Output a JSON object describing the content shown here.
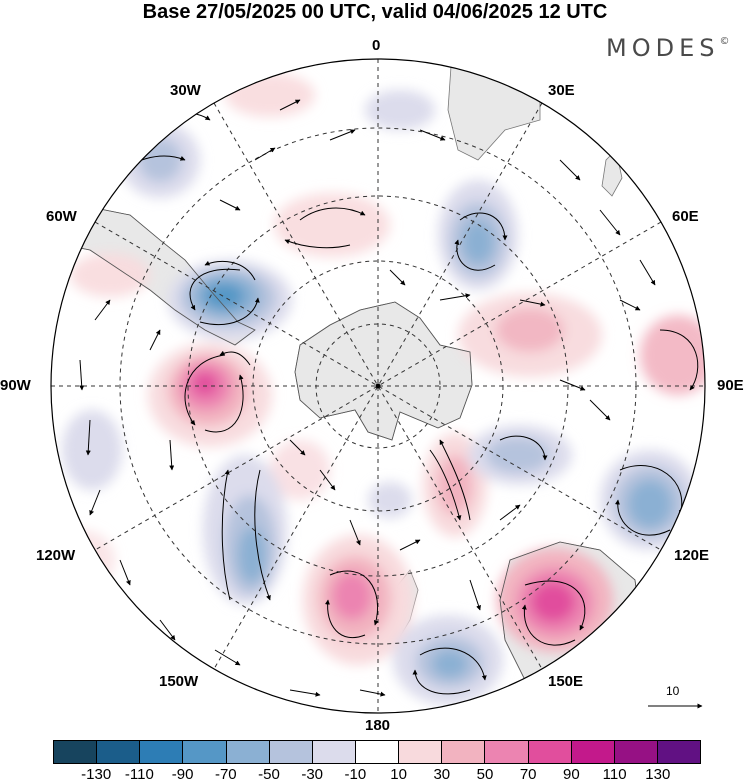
{
  "header": {
    "title": "Base 27/05/2025 00 UTC, valid 04/06/2025 12 UTC",
    "brand": "MODES",
    "brand_mark": "©"
  },
  "map": {
    "projection": "south-polar-stereographic",
    "longitude_labels": {
      "top": "0",
      "top_right": "30E",
      "top_left": "30W",
      "right_upper": "60E",
      "left_upper": "60W",
      "right": "90E",
      "left": "90W",
      "right_lower": "120E",
      "left_lower": "120W",
      "bottom_right": "150E",
      "bottom_left": "150W",
      "bottom": "180"
    },
    "reference_vector": {
      "label": "10"
    },
    "colors": {
      "land": "#e8e8e8",
      "coast": "#777777",
      "grid": "#333333"
    }
  },
  "colorbar": {
    "colors": [
      "#17445e",
      "#1b5d8a",
      "#2d7db5",
      "#5597c6",
      "#8bb0d3",
      "#b5c3dd",
      "#dcdcec",
      "#ffffff",
      "#f8dadd",
      "#f2b3c0",
      "#ec84b1",
      "#e14e9d",
      "#c3198b",
      "#961184",
      "#611183"
    ],
    "tick_labels": [
      "-130",
      "-110",
      "-90",
      "-70",
      "-50",
      "-30",
      "-10",
      "10",
      "30",
      "50",
      "70",
      "90",
      "110",
      "130"
    ]
  }
}
